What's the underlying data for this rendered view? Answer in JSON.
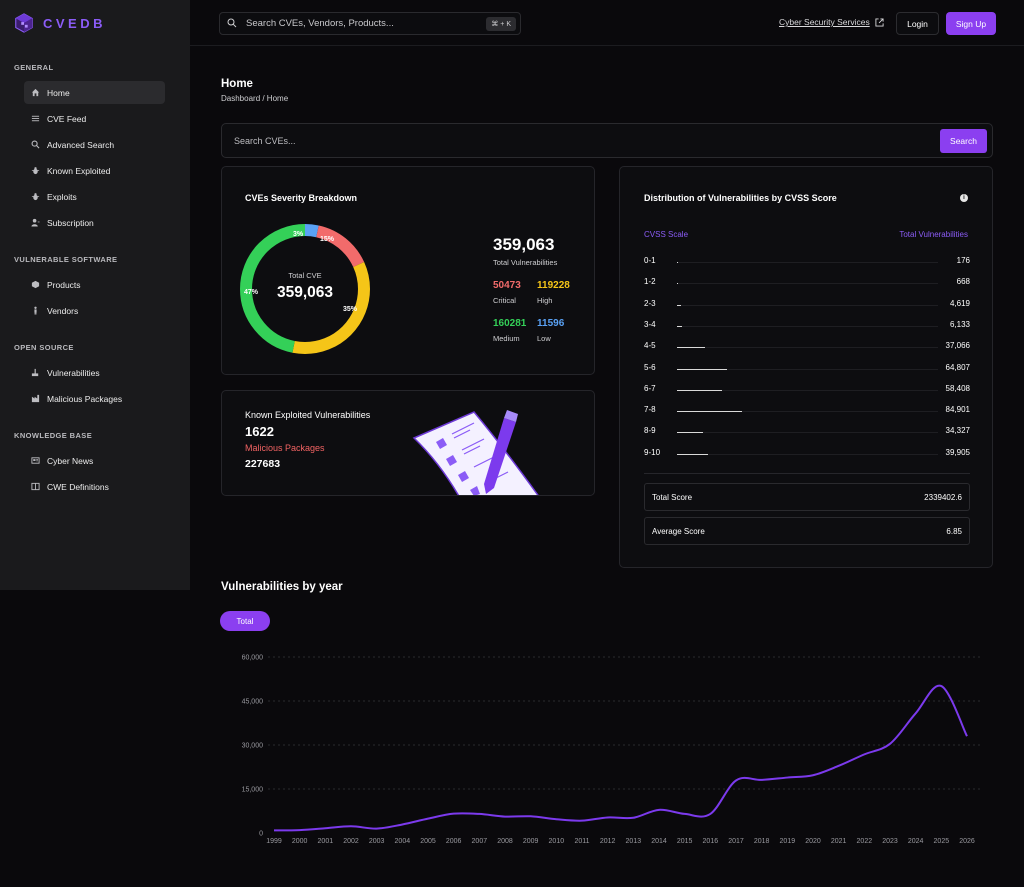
{
  "app": {
    "name": "CVEDB"
  },
  "topbar": {
    "search_placeholder": "Search CVEs, Vendors, Products...",
    "shortcut": "⌘ + K",
    "services_link": "Cyber Security Services",
    "login_label": "Login",
    "signup_label": "Sign Up"
  },
  "sidebar": {
    "sections": [
      {
        "title": "GENERAL",
        "items": [
          {
            "label": "Home",
            "icon": "home-icon",
            "active": true
          },
          {
            "label": "CVE Feed",
            "icon": "list-icon"
          },
          {
            "label": "Advanced Search",
            "icon": "search-icon"
          },
          {
            "label": "Known Exploited",
            "icon": "bug-icon"
          },
          {
            "label": "Exploits",
            "icon": "bug-icon"
          },
          {
            "label": "Subscription",
            "icon": "user-icon"
          }
        ]
      },
      {
        "title": "VULNERABLE SOFTWARE",
        "items": [
          {
            "label": "Products",
            "icon": "cube-icon"
          },
          {
            "label": "Vendors",
            "icon": "person-icon"
          }
        ]
      },
      {
        "title": "OPEN SOURCE",
        "items": [
          {
            "label": "Vulnerabilities",
            "icon": "shield-icon"
          },
          {
            "label": "Malicious Packages",
            "icon": "factory-icon"
          }
        ]
      },
      {
        "title": "KNOWLEDGE BASE",
        "items": [
          {
            "label": "Cyber News",
            "icon": "newspaper-icon"
          },
          {
            "label": "CWE Definitions",
            "icon": "book-icon"
          }
        ]
      }
    ]
  },
  "page": {
    "title": "Home",
    "breadcrumb": "Dashboard / Home",
    "search_placeholder": "Search CVEs...",
    "search_button": "Search"
  },
  "severity": {
    "title": "CVEs Severity Breakdown",
    "center_label": "Total CVE",
    "center_value": "359,063",
    "total_value": "359,063",
    "total_label": "Total Vulnerabilities",
    "items": [
      {
        "label": "Critical",
        "value": "50473",
        "color": "#f26b6b"
      },
      {
        "label": "High",
        "value": "119228",
        "color": "#f5c518"
      },
      {
        "label": "Medium",
        "value": "160281",
        "color": "#34d058"
      },
      {
        "label": "Low",
        "value": "11596",
        "color": "#5aa2f5"
      }
    ],
    "pct_labels": {
      "low": "3%",
      "critical": "15%",
      "high": "35%",
      "medium": "47%"
    }
  },
  "exploited": {
    "title": "Known Exploited Vulnerabilities",
    "value": "1622",
    "malicious_title": "Malicious Packages",
    "malicious_value": "227683"
  },
  "cvss": {
    "title": "Distribution of Vulnerabilities by CVSS Score",
    "col_scale": "CVSS Scale",
    "col_total": "Total Vulnerabilities",
    "rows": [
      {
        "range": "0-1",
        "count": "176",
        "value": 176
      },
      {
        "range": "1-2",
        "count": "668",
        "value": 668
      },
      {
        "range": "2-3",
        "count": "4,619",
        "value": 4619
      },
      {
        "range": "3-4",
        "count": "6,133",
        "value": 6133
      },
      {
        "range": "4-5",
        "count": "37,066",
        "value": 37066
      },
      {
        "range": "5-6",
        "count": "64,807",
        "value": 64807
      },
      {
        "range": "6-7",
        "count": "58,408",
        "value": 58408
      },
      {
        "range": "7-8",
        "count": "84,901",
        "value": 84901
      },
      {
        "range": "8-9",
        "count": "34,327",
        "value": 34327
      },
      {
        "range": "9-10",
        "count": "39,905",
        "value": 39905
      }
    ],
    "total_score_label": "Total Score",
    "total_score": "2339402.6",
    "average_score_label": "Average Score",
    "average_score": "6.85"
  },
  "year_section": {
    "title": "Vulnerabilities by year",
    "chip": "Total"
  },
  "chart_data": {
    "type": "line",
    "title": "",
    "xlabel": "",
    "ylabel": "",
    "ylim": [
      0,
      60000
    ],
    "y_ticks": [
      "0",
      "15,000",
      "30,000",
      "45,000",
      "60,000"
    ],
    "grid": true,
    "x": [
      "1999",
      "2000",
      "2001",
      "2002",
      "2003",
      "2004",
      "2005",
      "2006",
      "2007",
      "2008",
      "2009",
      "2010",
      "2011",
      "2012",
      "2013",
      "2014",
      "2015",
      "2016",
      "2017",
      "2018",
      "2019",
      "2020",
      "2021",
      "2022",
      "2023",
      "2024",
      "2025",
      "2026"
    ],
    "series": [
      {
        "name": "Total",
        "color": "#7c3aed",
        "values": [
          900,
          1000,
          1600,
          2300,
          1500,
          2900,
          4900,
          6600,
          6500,
          5600,
          5700,
          4700,
          4200,
          5300,
          5200,
          7900,
          6500,
          6500,
          17900,
          18100,
          18900,
          19700,
          22900,
          26800,
          30400,
          40800,
          50100,
          33000
        ]
      }
    ]
  }
}
